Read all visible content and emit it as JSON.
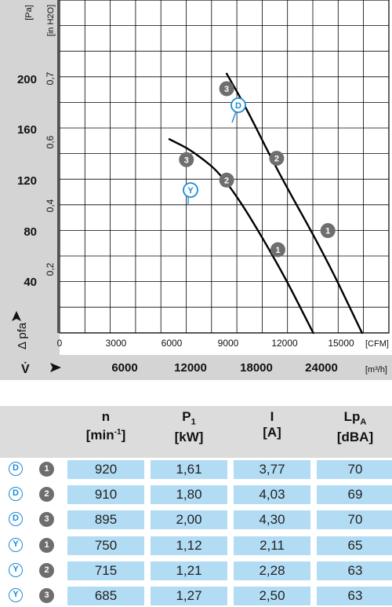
{
  "chart_data": {
    "type": "line",
    "y_unit_pa": "[Pa]",
    "y_unit_inh2o": "[in H2O]",
    "x_unit_cfm": "[CFM]",
    "x_unit_m3h": "[m³/h]",
    "ylabel": "Δ pfa",
    "xlabel": "V̇",
    "pa_ticks": [
      "40",
      "80",
      "120",
      "160",
      "200"
    ],
    "inh2o_ticks": [
      "0,2",
      "0,4",
      "0,6",
      "0,7"
    ],
    "cfm_ticks": [
      "0",
      "3000",
      "6000",
      "9000",
      "12000",
      "15000"
    ],
    "m3h_ticks": [
      "6000",
      "12000",
      "18000",
      "24000"
    ],
    "xlim_m3h": [
      0,
      27000
    ],
    "ylim_pa": [
      0,
      244
    ],
    "series": [
      {
        "name": "D",
        "points_m3h_pa": [
          [
            13700,
            190
          ],
          [
            15300,
            165
          ],
          [
            17800,
            120
          ],
          [
            21800,
            56
          ],
          [
            24800,
            0
          ]
        ],
        "markers": [
          {
            "label": "3",
            "x": 13700,
            "y": 179
          },
          {
            "label": "2",
            "x": 17800,
            "y": 128
          },
          {
            "label": "1",
            "x": 22000,
            "y": 75
          }
        ]
      },
      {
        "name": "Y",
        "points_m3h_pa": [
          [
            9000,
            142
          ],
          [
            11000,
            133
          ],
          [
            13700,
            113
          ],
          [
            17900,
            51
          ],
          [
            20800,
            0
          ]
        ],
        "markers": [
          {
            "label": "3",
            "x": 10400,
            "y": 127
          },
          {
            "label": "2",
            "x": 13700,
            "y": 112
          },
          {
            "label": "1",
            "x": 17900,
            "y": 61
          }
        ]
      }
    ]
  },
  "table": {
    "headers": [
      {
        "main": "n",
        "unit_pre": "[min",
        "unit_sup": "-1",
        "unit_post": "]"
      },
      {
        "main": "P",
        "main_sub": "1",
        "unit_pre": "[kW]",
        "unit_sup": "",
        "unit_post": ""
      },
      {
        "main": "I",
        "unit_pre": "[A]",
        "unit_sup": "",
        "unit_post": ""
      },
      {
        "main": "Lp",
        "main_sub": "A",
        "unit_pre": "[dBA]",
        "unit_sup": "",
        "unit_post": ""
      }
    ],
    "rows": [
      {
        "conn": "D",
        "point": "1",
        "n": "920",
        "p1": "1,61",
        "i": "3,77",
        "lpa": "70"
      },
      {
        "conn": "D",
        "point": "2",
        "n": "910",
        "p1": "1,80",
        "i": "4,03",
        "lpa": "69"
      },
      {
        "conn": "D",
        "point": "3",
        "n": "895",
        "p1": "2,00",
        "i": "4,30",
        "lpa": "70"
      },
      {
        "conn": "Y",
        "point": "1",
        "n": "750",
        "p1": "1,12",
        "i": "2,11",
        "lpa": "65"
      },
      {
        "conn": "Y",
        "point": "2",
        "n": "715",
        "p1": "1,21",
        "i": "2,28",
        "lpa": "63"
      },
      {
        "conn": "Y",
        "point": "3",
        "n": "685",
        "p1": "1,27",
        "i": "2,50",
        "lpa": "63"
      }
    ]
  },
  "colors": {
    "grey_panel": "#d4d4d4",
    "accent_blue": "#1a8ad8",
    "cell_blue": "#b2dcf4",
    "marker_grey": "#6e6e6e"
  }
}
